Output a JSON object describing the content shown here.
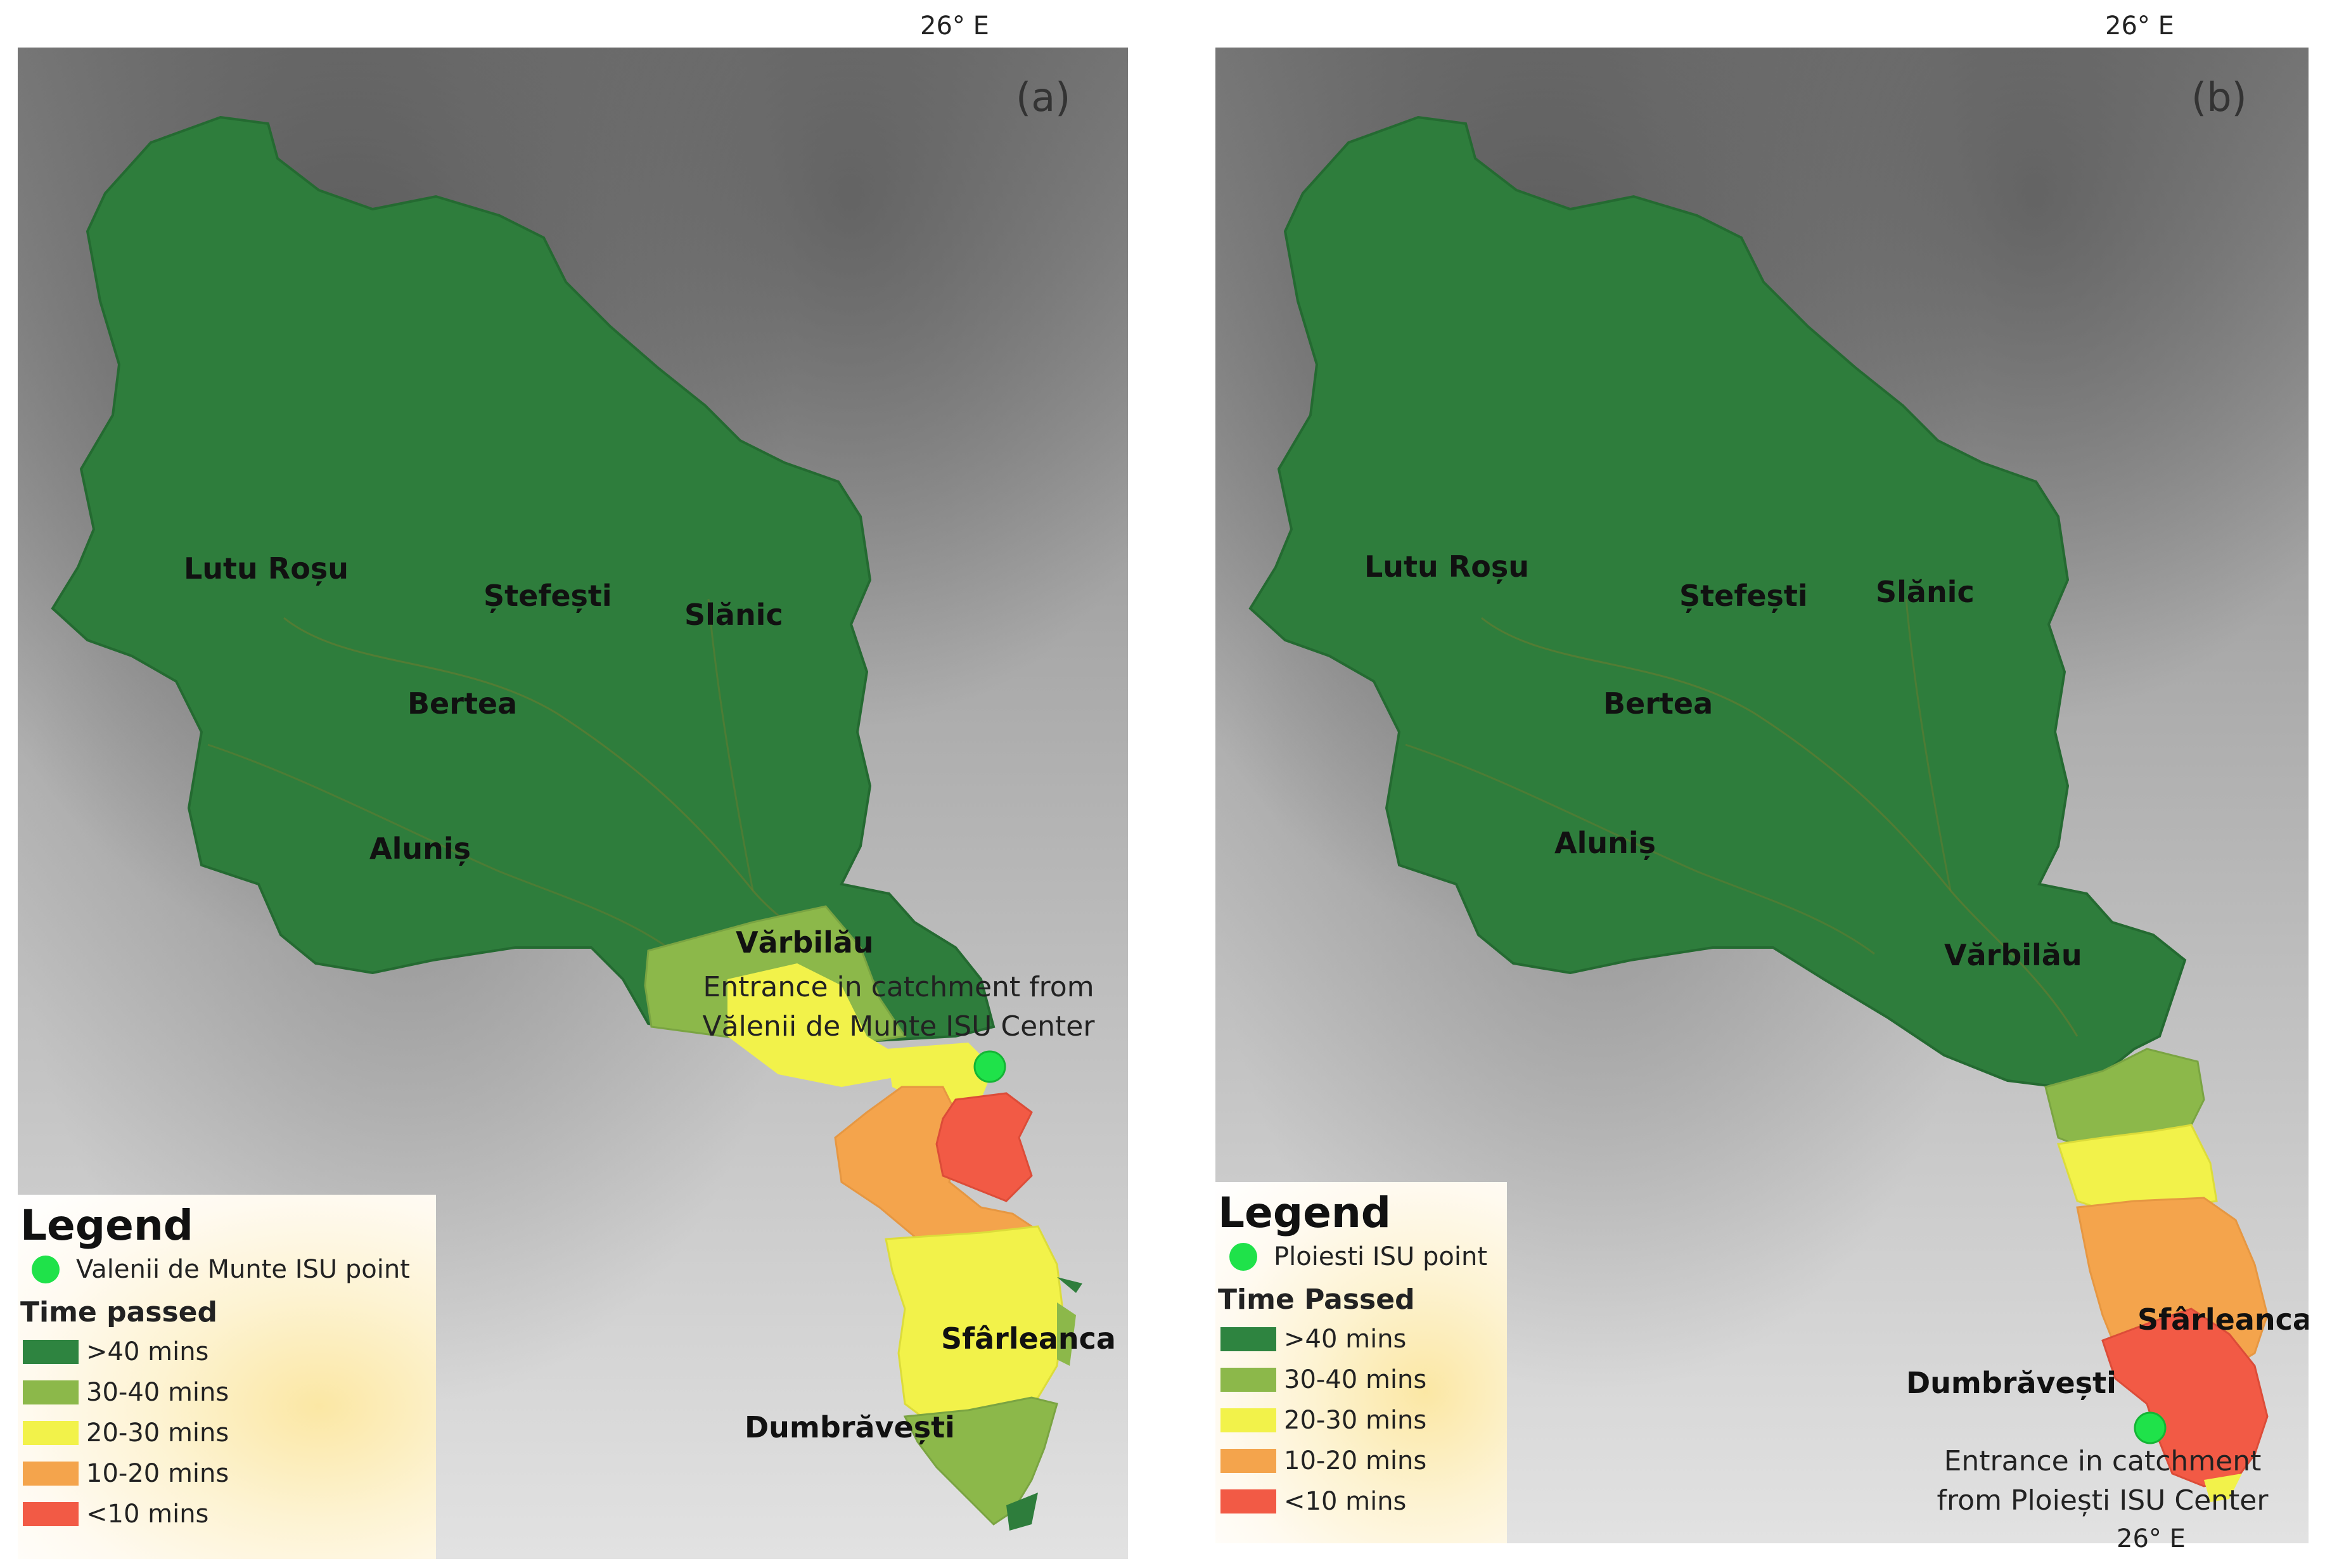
{
  "panels": [
    {
      "id": "a",
      "label": "(a)",
      "coord_top": "26° E",
      "coord_bottom": "",
      "places": [
        "Lutu Roșu",
        "Ștefești",
        "Slănic",
        "Bertea",
        "Aluniș",
        "Vărbilău",
        "Sfârleanca",
        "Dumbrăvești"
      ],
      "annotation_line1": "Entrance in catchment from",
      "annotation_line2": "Vălenii de Munte ISU Center",
      "legend": {
        "title": "Legend",
        "point_label": "Valenii de Munte ISU point",
        "time_title": "Time passed"
      }
    },
    {
      "id": "b",
      "label": "(b)",
      "coord_top": "26° E",
      "coord_bottom": "26° E",
      "places": [
        "Lutu Roșu",
        "Ștefești",
        "Slănic",
        "Bertea",
        "Aluniș",
        "Vărbilău",
        "Sfârleanca",
        "Dumbrăvești"
      ],
      "annotation_line1": "Entrance in catchment",
      "annotation_line2": "from Ploiești ISU Center",
      "legend": {
        "title": "Legend",
        "point_label": "Ploiesti ISU point",
        "time_title": "Time Passed"
      }
    }
  ],
  "time_classes": [
    {
      "label": ">40 mins",
      "color": "#2e8440"
    },
    {
      "label": "30-40 mins",
      "color": "#8cb84a"
    },
    {
      "label": "20-30 mins",
      "color": "#f2f24a"
    },
    {
      "label": "10-20 mins",
      "color": "#f4a44c"
    },
    {
      "label": "<10 mins",
      "color": "#f25a45"
    }
  ],
  "colors": {
    "catchment": "#2e7d3c",
    "isu_point": "#1fe24a"
  }
}
